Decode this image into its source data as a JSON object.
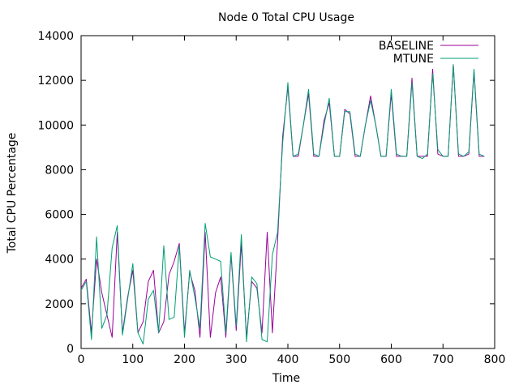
{
  "chart_data": {
    "type": "line",
    "title": "Node 0 Total CPU Usage",
    "xlabel": "Time",
    "ylabel": "Total CPU Percentage",
    "xlim": [
      0,
      800
    ],
    "ylim": [
      0,
      14000
    ],
    "x_ticks": [
      0,
      100,
      200,
      300,
      400,
      500,
      600,
      700,
      800
    ],
    "y_ticks": [
      0,
      2000,
      4000,
      6000,
      8000,
      10000,
      12000,
      14000
    ],
    "grid": false,
    "legend_position": "top-right",
    "series": [
      {
        "name": "BASELINE",
        "color": "#990099",
        "x": [
          0,
          10,
          20,
          30,
          40,
          50,
          60,
          70,
          80,
          90,
          100,
          110,
          120,
          130,
          140,
          150,
          160,
          170,
          180,
          190,
          200,
          210,
          220,
          230,
          240,
          250,
          260,
          270,
          280,
          290,
          300,
          310,
          320,
          330,
          340,
          350,
          360,
          370,
          380,
          390,
          400,
          410,
          420,
          430,
          440,
          450,
          460,
          470,
          480,
          490,
          500,
          510,
          520,
          530,
          540,
          550,
          560,
          570,
          580,
          590,
          600,
          610,
          620,
          630,
          640,
          650,
          660,
          670,
          680,
          690,
          700,
          710,
          720,
          730,
          740,
          750,
          760,
          770,
          780
        ],
        "values": [
          2700,
          3100,
          700,
          4000,
          2500,
          1500,
          500,
          5200,
          700,
          2300,
          3500,
          700,
          1200,
          3000,
          3500,
          700,
          1200,
          3300,
          3900,
          4700,
          700,
          3400,
          2600,
          500,
          5200,
          500,
          2500,
          3200,
          500,
          4200,
          800,
          4700,
          500,
          3000,
          2700,
          700,
          5200,
          700,
          4800,
          9500,
          11700,
          8600,
          8600,
          10000,
          11400,
          8600,
          8600,
          10200,
          11000,
          8600,
          8600,
          10700,
          10500,
          8600,
          8600,
          10000,
          11300,
          10000,
          8600,
          8600,
          11400,
          8600,
          8600,
          8600,
          12100,
          8600,
          8600,
          8600,
          12500,
          8700,
          8600,
          8600,
          12700,
          8600,
          8600,
          8700,
          12400,
          8600,
          8600
        ]
      },
      {
        "name": "MTUNE",
        "color": "#009e73",
        "x": [
          0,
          10,
          20,
          30,
          40,
          50,
          60,
          70,
          80,
          90,
          100,
          110,
          120,
          130,
          140,
          150,
          160,
          170,
          180,
          190,
          200,
          210,
          220,
          230,
          240,
          250,
          260,
          270,
          280,
          290,
          300,
          310,
          320,
          330,
          340,
          350,
          360,
          370,
          380,
          390,
          400,
          410,
          420,
          430,
          440,
          450,
          460,
          470,
          480,
          490,
          500,
          510,
          520,
          530,
          540,
          550,
          560,
          570,
          580,
          590,
          600,
          610,
          620,
          630,
          640,
          650,
          660,
          670,
          680,
          690,
          700,
          710,
          720,
          730,
          740,
          750,
          760,
          770,
          780
        ],
        "values": [
          2600,
          3000,
          400,
          5000,
          900,
          1500,
          4500,
          5500,
          600,
          2200,
          3800,
          700,
          200,
          2200,
          2600,
          700,
          4600,
          1300,
          1400,
          4600,
          500,
          3500,
          2300,
          900,
          5600,
          4100,
          4000,
          3900,
          700,
          4300,
          1000,
          5100,
          300,
          3200,
          2900,
          400,
          300,
          4200,
          5200,
          9200,
          11900,
          8600,
          8700,
          10000,
          11600,
          8700,
          8600,
          10000,
          11200,
          8600,
          8600,
          10600,
          10600,
          8700,
          8600,
          10000,
          11100,
          10000,
          8600,
          8600,
          11600,
          8700,
          8600,
          8600,
          11900,
          8600,
          8500,
          8700,
          12300,
          8900,
          8600,
          8600,
          12700,
          8700,
          8600,
          8800,
          12500,
          8700,
          8600
        ]
      }
    ]
  }
}
